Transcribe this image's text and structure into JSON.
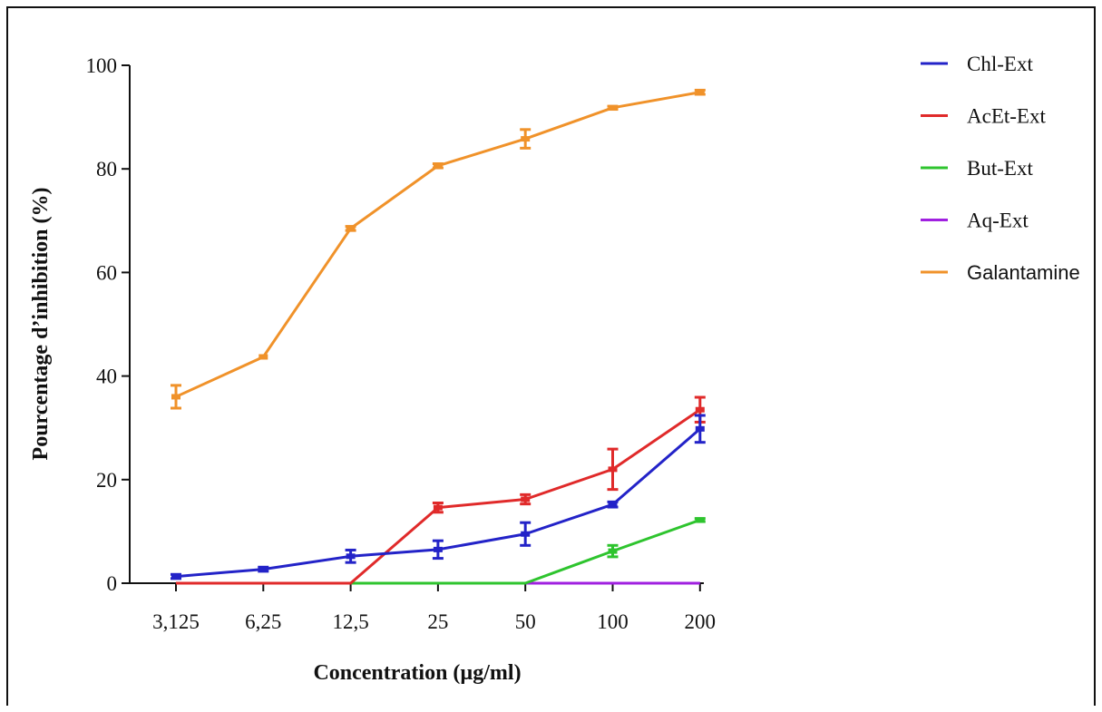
{
  "chart_data": {
    "type": "line",
    "title": "",
    "xlabel": "Concentration (µg/ml)",
    "ylabel": "Pourcentage d’inhibition (%)",
    "categories": [
      "3,125",
      "6,25",
      "12,5",
      "25",
      "50",
      "100",
      "200"
    ],
    "ylim": [
      0,
      100
    ],
    "yticks": [
      "0",
      "20",
      "40",
      "60",
      "80",
      "100"
    ],
    "grid": false,
    "legend_position": "top-right",
    "series": [
      {
        "name": "Chl-Ext",
        "color": "#2323c8",
        "values": [
          1.3,
          2.7,
          5.2,
          6.5,
          9.5,
          15.2,
          29.8
        ],
        "errors": [
          0.4,
          0.4,
          1.2,
          1.7,
          2.2,
          0.5,
          2.6
        ]
      },
      {
        "name": "AcEt-Ext",
        "color": "#e02a2a",
        "values": [
          0,
          0,
          0,
          14.6,
          16.2,
          22.0,
          33.5
        ],
        "errors": [
          0,
          0,
          0,
          0.9,
          0.9,
          3.9,
          2.4
        ]
      },
      {
        "name": "But-Ext",
        "color": "#2ec42e",
        "values": [
          0,
          0,
          0,
          0,
          0,
          6.2,
          12.2
        ],
        "errors": [
          0,
          0,
          0,
          0,
          0,
          1.1,
          0.3
        ]
      },
      {
        "name": "Aq-Ext",
        "color": "#a020e0",
        "values": [
          0,
          0,
          0,
          0,
          0,
          0,
          0
        ],
        "errors": [
          0,
          0,
          0,
          0,
          0,
          0,
          0
        ]
      },
      {
        "name": "Galantamine",
        "color": "#f0922a",
        "values": [
          36.0,
          43.7,
          68.5,
          80.6,
          85.8,
          91.8,
          94.8
        ],
        "errors": [
          2.2,
          0,
          0.4,
          0.4,
          1.8,
          0.3,
          0.4
        ]
      }
    ]
  }
}
